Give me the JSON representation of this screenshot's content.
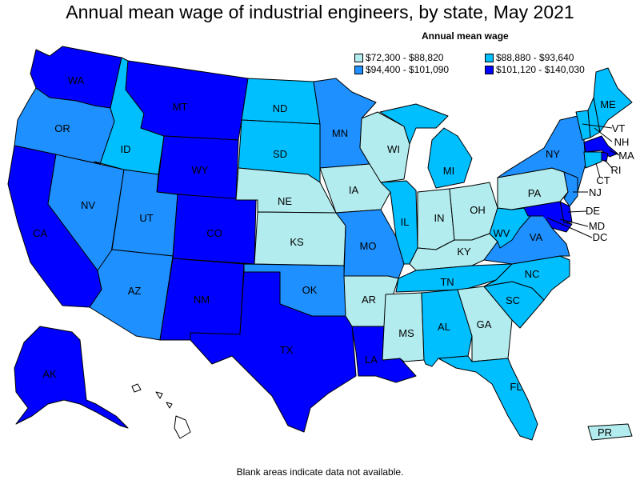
{
  "title": "Annual mean wage of industrial engineers, by state, May 2021",
  "legend": {
    "title": "Annual mean wage",
    "items": [
      {
        "label": "$72,300 - $88,820",
        "color": "#b3ecee"
      },
      {
        "label": "$88,880 - $93,640",
        "color": "#00bfff"
      },
      {
        "label": "$94,400 - $101,090",
        "color": "#1e90ff"
      },
      {
        "label": "$101,120 - $140,030",
        "color": "#0000ff"
      }
    ]
  },
  "footnote": "Blank areas indicate data not available.",
  "colors": {
    "c1": "#b3ecee",
    "c2": "#00bfff",
    "c3": "#1e90ff",
    "c4": "#0000ff"
  },
  "states": {
    "WA": {
      "label": "WA",
      "bin": 4
    },
    "OR": {
      "label": "OR",
      "bin": 3
    },
    "CA": {
      "label": "CA",
      "bin": 4
    },
    "NV": {
      "label": "NV",
      "bin": 3
    },
    "ID": {
      "label": "ID",
      "bin": 2
    },
    "MT": {
      "label": "MT",
      "bin": 4
    },
    "WY": {
      "label": "WY",
      "bin": 4
    },
    "UT": {
      "label": "UT",
      "bin": 3
    },
    "AZ": {
      "label": "AZ",
      "bin": 3
    },
    "CO": {
      "label": "CO",
      "bin": 4
    },
    "NM": {
      "label": "NM",
      "bin": 4
    },
    "ND": {
      "label": "ND",
      "bin": 2
    },
    "SD": {
      "label": "SD",
      "bin": 2
    },
    "NE": {
      "label": "NE",
      "bin": 1
    },
    "KS": {
      "label": "KS",
      "bin": 1
    },
    "OK": {
      "label": "OK",
      "bin": 3
    },
    "TX": {
      "label": "TX",
      "bin": 4
    },
    "MN": {
      "label": "MN",
      "bin": 3
    },
    "IA": {
      "label": "IA",
      "bin": 1
    },
    "MO": {
      "label": "MO",
      "bin": 3
    },
    "AR": {
      "label": "AR",
      "bin": 1
    },
    "LA": {
      "label": "LA",
      "bin": 4
    },
    "WI": {
      "label": "WI",
      "bin": 1
    },
    "IL": {
      "label": "IL",
      "bin": 2
    },
    "MI": {
      "label": "MI",
      "bin": 2
    },
    "IN": {
      "label": "IN",
      "bin": 1
    },
    "OH": {
      "label": "OH",
      "bin": 1
    },
    "KY": {
      "label": "KY",
      "bin": 1
    },
    "TN": {
      "label": "TN",
      "bin": 2
    },
    "MS": {
      "label": "MS",
      "bin": 1
    },
    "AL": {
      "label": "AL",
      "bin": 2
    },
    "GA": {
      "label": "GA",
      "bin": 1
    },
    "FL": {
      "label": "FL",
      "bin": 2
    },
    "SC": {
      "label": "SC",
      "bin": 2
    },
    "NC": {
      "label": "NC",
      "bin": 2
    },
    "VA": {
      "label": "VA",
      "bin": 3
    },
    "WV": {
      "label": "WV",
      "bin": 2
    },
    "PA": {
      "label": "PA",
      "bin": 1
    },
    "NY": {
      "label": "NY",
      "bin": 3
    },
    "VT": {
      "label": "VT",
      "bin": 2
    },
    "NH": {
      "label": "NH",
      "bin": 2
    },
    "ME": {
      "label": "ME",
      "bin": 2
    },
    "MA": {
      "label": "MA",
      "bin": 4
    },
    "RI": {
      "label": "RI",
      "bin": 4
    },
    "CT": {
      "label": "CT",
      "bin": 2
    },
    "NJ": {
      "label": "NJ",
      "bin": 3
    },
    "DE": {
      "label": "DE",
      "bin": 4
    },
    "MD": {
      "label": "MD",
      "bin": 4
    },
    "DC": {
      "label": "DC",
      "bin": 4
    },
    "AK": {
      "label": "AK",
      "bin": 4
    },
    "HI": {
      "label": "",
      "bin": 0
    },
    "PR": {
      "label": "PR",
      "bin": 1
    }
  }
}
